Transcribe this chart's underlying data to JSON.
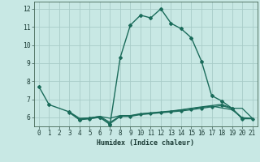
{
  "xlabel": "Humidex (Indice chaleur)",
  "ylabel": "",
  "xlim": [
    -0.5,
    21.5
  ],
  "ylim": [
    5.5,
    12.4
  ],
  "yticks": [
    6,
    7,
    8,
    9,
    10,
    11,
    12
  ],
  "xticks": [
    0,
    1,
    2,
    3,
    4,
    5,
    6,
    7,
    8,
    9,
    10,
    11,
    12,
    13,
    14,
    15,
    16,
    17,
    18,
    19,
    20,
    21
  ],
  "bg_color": "#c8e8e4",
  "grid_color": "#a8ccc8",
  "line_color": "#1a6b5a",
  "curves": [
    {
      "x": [
        0,
        1,
        3,
        4,
        5,
        6,
        7,
        8,
        9,
        10,
        11,
        12,
        13,
        14,
        15,
        16,
        17,
        18,
        19,
        20
      ],
      "y": [
        7.7,
        6.7,
        6.3,
        5.85,
        5.95,
        6.0,
        5.6,
        9.3,
        11.1,
        11.65,
        11.5,
        12.0,
        11.2,
        10.9,
        10.4,
        9.1,
        7.2,
        6.9,
        6.5,
        5.95
      ],
      "marker": "D",
      "markersize": 2.0,
      "linewidth": 1.0,
      "linestyle": "-"
    },
    {
      "x": [
        3,
        4,
        5,
        6,
        7,
        8,
        9,
        10,
        11,
        12,
        13,
        14,
        15,
        16,
        17,
        18,
        19,
        20,
        21
      ],
      "y": [
        6.3,
        5.95,
        5.97,
        6.05,
        5.95,
        6.1,
        6.1,
        6.2,
        6.25,
        6.3,
        6.35,
        6.42,
        6.5,
        6.58,
        6.65,
        6.72,
        6.5,
        6.5,
        5.95
      ],
      "marker": null,
      "markersize": 0,
      "linewidth": 0.9,
      "linestyle": "-"
    },
    {
      "x": [
        4,
        5,
        6,
        7,
        8,
        9,
        10,
        11,
        12,
        13,
        14,
        15,
        16,
        17,
        18,
        19,
        20,
        21
      ],
      "y": [
        5.9,
        5.97,
        6.05,
        5.72,
        6.08,
        6.08,
        6.18,
        6.23,
        6.28,
        6.33,
        6.4,
        6.48,
        6.55,
        6.62,
        6.52,
        6.42,
        5.98,
        5.95
      ],
      "marker": null,
      "markersize": 0,
      "linewidth": 0.9,
      "linestyle": "-"
    },
    {
      "x": [
        3,
        4,
        5,
        6,
        7,
        8,
        9,
        10,
        11,
        12,
        13,
        14,
        15,
        16,
        17,
        18,
        19,
        20,
        21
      ],
      "y": [
        6.25,
        5.88,
        5.92,
        6.0,
        5.65,
        6.05,
        6.05,
        6.15,
        6.2,
        6.25,
        6.3,
        6.35,
        6.42,
        6.5,
        6.58,
        6.65,
        6.48,
        5.92,
        5.92
      ],
      "marker": "D",
      "markersize": 1.8,
      "linewidth": 0.9,
      "linestyle": "-"
    }
  ]
}
